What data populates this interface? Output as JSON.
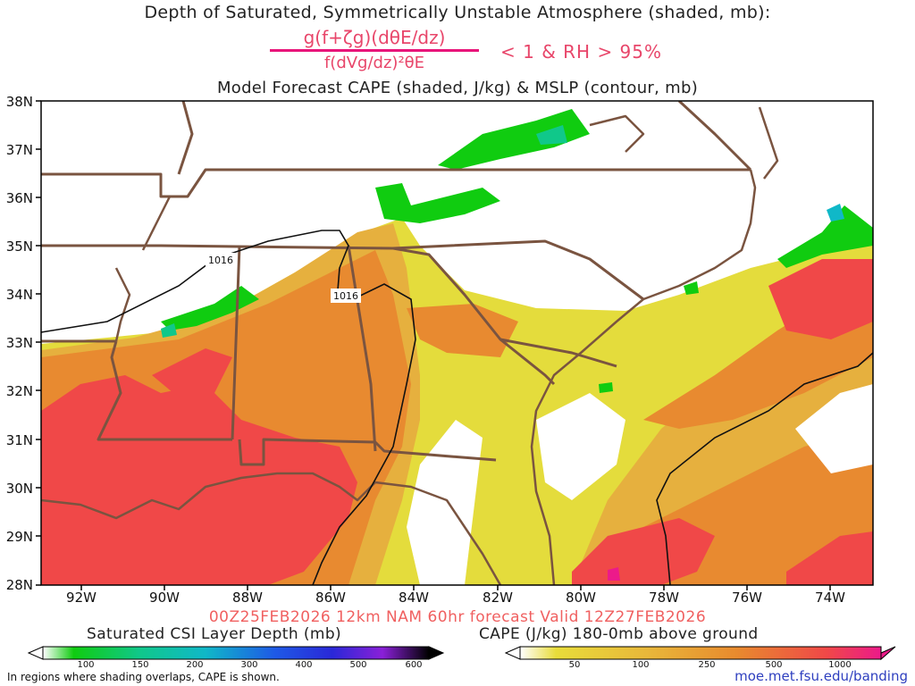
{
  "titles": {
    "line1": "Depth of Saturated, Symmetrically Unstable Atmosphere (shaded, mb):",
    "numerator": "g(f+ζg)(dθE/dz)",
    "denominator": "f(dVg/dz)²θE",
    "criteria": "< 1 & RH > 95%",
    "line3": "Model Forecast CAPE (shaded, J/kg) & MSLP (contour, mb)"
  },
  "axes": {
    "lat_labels": [
      "38N",
      "37N",
      "36N",
      "35N",
      "34N",
      "33N",
      "32N",
      "31N",
      "30N",
      "29N",
      "28N"
    ],
    "lon_labels": [
      "92W",
      "90W",
      "88W",
      "86W",
      "84W",
      "82W",
      "80W",
      "78W",
      "76W",
      "74W"
    ]
  },
  "isobars": [
    {
      "label": "1016"
    },
    {
      "label": "1016"
    }
  ],
  "valid_line": "00Z25FEB2026 12km NAM 60hr forecast Valid 12Z27FEB2026",
  "legend_csi": {
    "title": "Saturated CSI Layer Depth (mb)",
    "ticks": [
      "100",
      "150",
      "200",
      "300",
      "400",
      "500",
      "600"
    ],
    "colors": [
      "#ffffff",
      "#10cc10",
      "#10c88a",
      "#10b8c8",
      "#1e5ae6",
      "#2a28d8",
      "#8a20d8",
      "#000000"
    ]
  },
  "legend_cape": {
    "title": "CAPE (J/kg) 180-0mb above ground",
    "ticks": [
      "50",
      "100",
      "250",
      "500",
      "1000"
    ],
    "colors": [
      "#ffffff",
      "#e8dc3a",
      "#e8a83a",
      "#e88a2e",
      "#f04848",
      "#ec1a8a"
    ]
  },
  "footer_note": "In regions where shading overlaps, CAPE is shown.",
  "source_url": "moe.met.fsu.edu/banding",
  "colors": {
    "cape_50": "#e4dc3c",
    "cape_100": "#e6b03e",
    "cape_250": "#e88a30",
    "cape_500": "#f04848",
    "cape_1000": "#ec1a8a",
    "csi_100": "#10cc10",
    "csi_150": "#10c88a",
    "csi_200": "#10b8c8",
    "borders": "#7a5440"
  }
}
